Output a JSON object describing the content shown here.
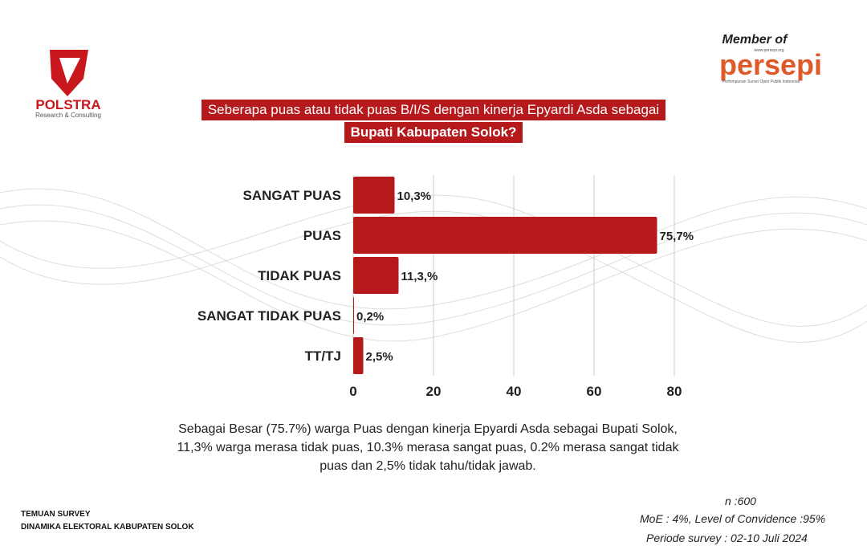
{
  "header": {
    "logo_name": "POLSTRA",
    "logo_tagline": "Research & Consulting",
    "member_label": "Member of",
    "member_logo": "persepi",
    "member_url": "www.persepi.org",
    "member_tagline": "Perhimpunan Survei Opini Publik Indonesia",
    "question_lines": [
      "Seberapa puas atau tidak puas B/I/S dengan kinerja Epyardi Asda sebagai",
      "Bupati Kabupaten Solok?"
    ]
  },
  "chart_data": {
    "type": "bar",
    "orientation": "horizontal",
    "categories": [
      "SANGAT PUAS",
      "PUAS",
      "TIDAK PUAS",
      "SANGAT TIDAK PUAS",
      "TT/TJ"
    ],
    "values": [
      10.3,
      75.7,
      11.3,
      0.2,
      2.5
    ],
    "value_labels": [
      "10,3%",
      "75,7%",
      "11,3,%",
      "0,2%",
      "2,5%"
    ],
    "color": "#b5191c",
    "xlim": [
      0,
      80
    ],
    "xticks": [
      0,
      20,
      40,
      60,
      80
    ],
    "grid": true
  },
  "summary": [
    "Sebagai Besar (75.7%) warga Puas dengan kinerja Epyardi Asda sebagai Bupati Solok,",
    "11,3% warga merasa tidak puas, 10.3% merasa sangat puas, 0.2% merasa sangat tidak",
    "puas dan 2,5% tidak tahu/tidak jawab."
  ],
  "footer": {
    "left": [
      "TEMUAN SURVEY",
      "DINAMIKA ELEKTORAL KABUPATEN SOLOK"
    ],
    "right": [
      "n :600",
      "MoE : 4%, Level of Convidence :95%",
      "Periode survey : 02-10 Juli 2024"
    ]
  }
}
